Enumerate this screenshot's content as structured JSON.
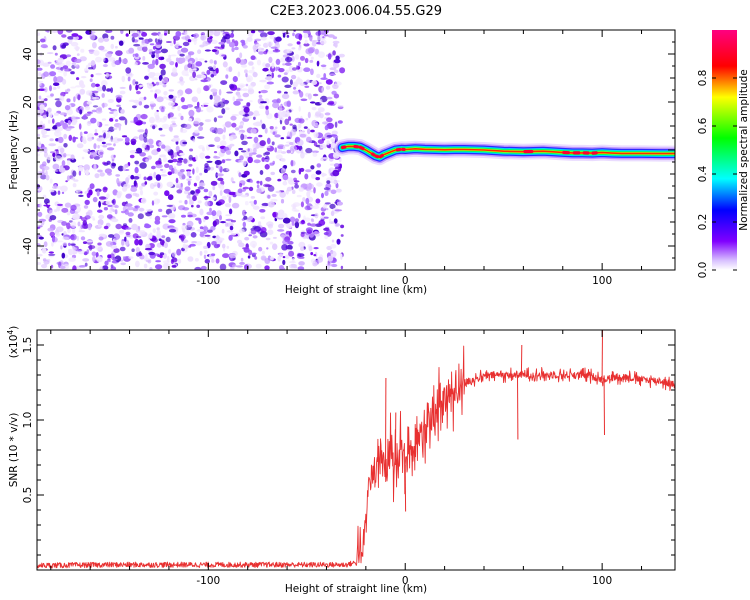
{
  "figure": {
    "title": "C2E3.2023.006.04.55.G29"
  },
  "chart_data": [
    {
      "type": "heatmap",
      "xlabel": "Height of straight line (km)",
      "ylabel": "Frequency (Hz)",
      "xlim": [
        -187,
        137
      ],
      "ylim": [
        -50,
        50
      ],
      "xticks": [
        -100,
        0,
        100
      ],
      "yticks": [
        -40,
        -20,
        0,
        20,
        40
      ],
      "grid": false,
      "noise_region_x": [
        -187,
        -34
      ],
      "signal_track": {
        "x": [
          -32,
          -29,
          -26,
          -23,
          -20,
          -17,
          -15,
          -13,
          -11,
          -8,
          -5,
          -2,
          0,
          5,
          10,
          15,
          20,
          25,
          30,
          40,
          50,
          60,
          70,
          80,
          85,
          90,
          95,
          100,
          105,
          110,
          120,
          130,
          137
        ],
        "y": [
          1,
          1.5,
          1.5,
          1.2,
          0,
          -1.5,
          -2.5,
          -3,
          -2,
          -1,
          0,
          0.3,
          0.2,
          0.5,
          0.3,
          0.2,
          0.1,
          0.2,
          0.2,
          0,
          -0.5,
          -0.7,
          -0.5,
          -1,
          -1.2,
          -1.2,
          -1.3,
          -1.1,
          -1.3,
          -1.4,
          -1.4,
          -1.5,
          -1.5
        ]
      },
      "colorbar": {
        "label": "Normalized spectral amplitude",
        "ticks": [
          "0.0",
          "0.2",
          "0.4",
          "0.6",
          "0.8"
        ],
        "range": [
          0,
          1
        ],
        "colormap": [
          "#ffffff",
          "#8000ff",
          "#0000ff",
          "#00ffff",
          "#00ff00",
          "#ffff00",
          "#ff0000",
          "#ff0080"
        ]
      }
    },
    {
      "type": "line",
      "xlabel": "Height of straight line (km)",
      "ylabel": "SNR (10 * v/v)",
      "y_multiplier": "(x10",
      "y_multiplier_exp": "4",
      "y_multiplier_close": ")",
      "xlim": [
        -187,
        137
      ],
      "ylim": [
        0,
        16000
      ],
      "xticks": [
        -100,
        0,
        100
      ],
      "yticks": [
        5000,
        10000,
        15000
      ],
      "ytick_labels": [
        "0.5",
        "1.0",
        "1.5"
      ],
      "color": "#e83030",
      "grid": false,
      "series": [
        {
          "x": [
            -187,
            -150,
            -100,
            -50,
            -30,
            -25,
            -22,
            -20,
            -18,
            -15,
            -12,
            -10,
            -8,
            -5,
            -2,
            0,
            3,
            5,
            8,
            10,
            12,
            15,
            20,
            25,
            30,
            35,
            40,
            45,
            50,
            55,
            60,
            70,
            80,
            90,
            95,
            100,
            105,
            110,
            120,
            130,
            137
          ],
          "y": [
            300,
            350,
            350,
            350,
            350,
            500,
            1500,
            4000,
            6000,
            6500,
            7000,
            6500,
            7500,
            7000,
            8000,
            7000,
            8000,
            8500,
            9000,
            9500,
            10000,
            10500,
            11500,
            12000,
            12500,
            12700,
            12900,
            13000,
            13000,
            13000,
            13000,
            13000,
            13000,
            13000,
            12900,
            12700,
            12800,
            12900,
            12700,
            12600,
            12300
          ]
        }
      ],
      "spikes": [
        {
          "x": -10,
          "y": 12800
        },
        {
          "x": -5,
          "y": 10500
        },
        {
          "x": 0,
          "y": 3900
        },
        {
          "x": 57,
          "y": 8700
        },
        {
          "x": 59,
          "y": 15000
        },
        {
          "x": 100,
          "y": 16000
        },
        {
          "x": 101,
          "y": 9000
        }
      ]
    }
  ]
}
